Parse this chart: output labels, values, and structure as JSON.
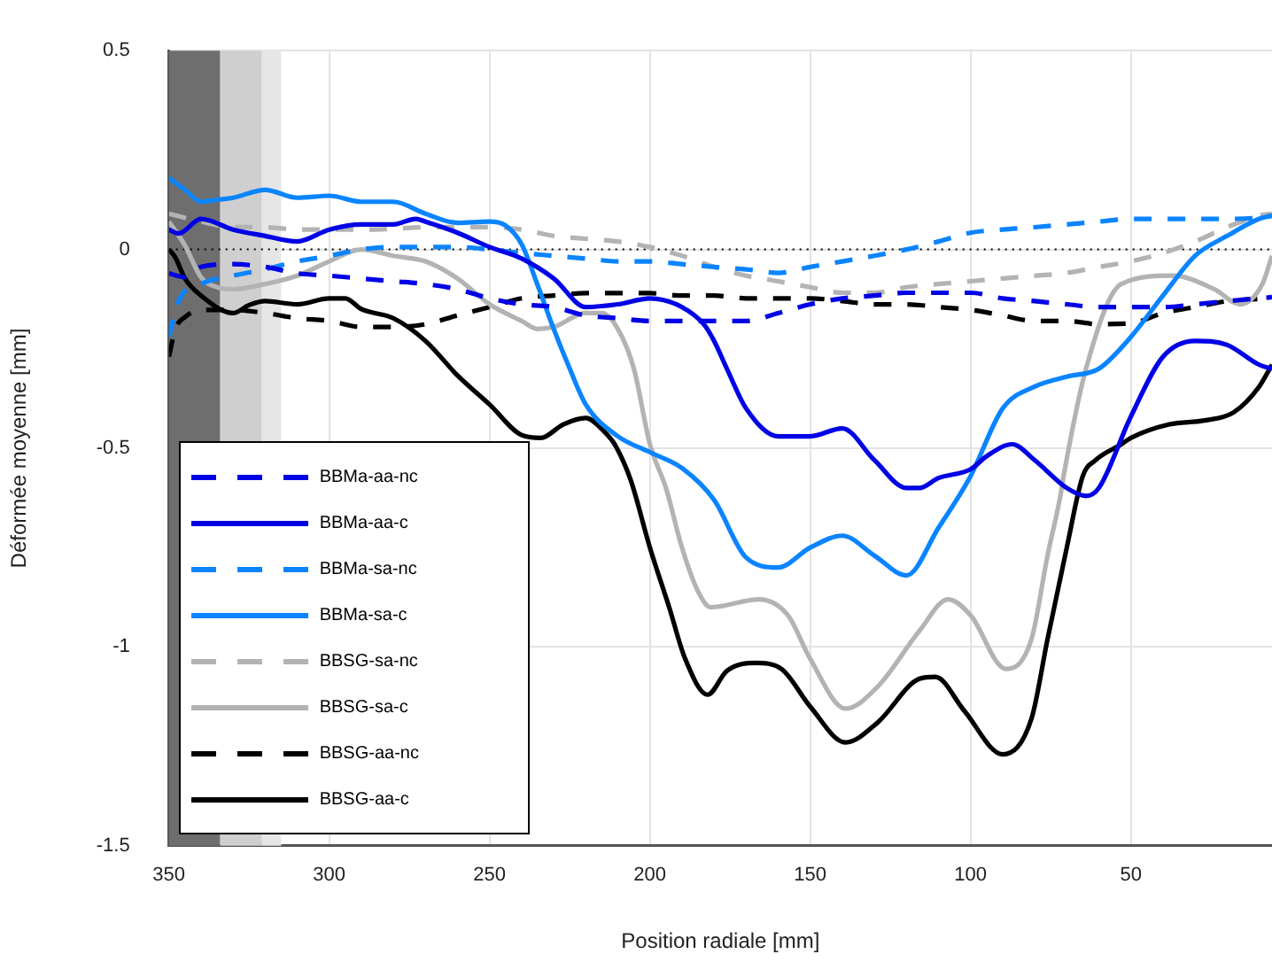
{
  "chart_data": {
    "type": "line",
    "xlabel": "Position radiale [mm]",
    "ylabel": "Déformée moyenne [mm]",
    "xlim": [
      350,
      6
    ],
    "xticks": [
      350,
      300,
      250,
      200,
      150,
      100,
      50
    ],
    "ylim": [
      -1.5,
      0.5
    ],
    "yticks": [
      0.5,
      0,
      -0.5,
      -1,
      -1.5
    ],
    "grid": true,
    "legend": "bottom left",
    "marker": "none",
    "ref_lines": [
      {
        "axis": "y",
        "value": 0,
        "color": "#000000",
        "line_style": "dotted"
      }
    ],
    "bands": [
      {
        "axis": "x",
        "from": 350,
        "to": 334,
        "color": "#6e6e6e"
      },
      {
        "axis": "x",
        "from": 334,
        "to": 321,
        "color": "#cfcfcf"
      },
      {
        "axis": "x",
        "from": 321,
        "to": 315,
        "color": "#e6e6e6"
      }
    ],
    "series": [
      {
        "name": "BBMa-aa-nc",
        "color": "#0000e6",
        "line_style": "dashed",
        "x": [
          350,
          345,
          340,
          330,
          320,
          310,
          300,
          290,
          280,
          270,
          260,
          250,
          240,
          230,
          220,
          210,
          200,
          190,
          180,
          170,
          160,
          150,
          140,
          130,
          120,
          110,
          100,
          90,
          80,
          70,
          60,
          50,
          40,
          30,
          20,
          10,
          6
        ],
        "values": [
          -0.06,
          -0.07,
          -0.044,
          -0.037,
          -0.044,
          -0.06,
          -0.066,
          -0.073,
          -0.08,
          -0.087,
          -0.1,
          -0.123,
          -0.138,
          -0.145,
          -0.166,
          -0.173,
          -0.18,
          -0.18,
          -0.18,
          -0.18,
          -0.16,
          -0.138,
          -0.123,
          -0.116,
          -0.109,
          -0.109,
          -0.109,
          -0.123,
          -0.13,
          -0.138,
          -0.145,
          -0.145,
          -0.145,
          -0.138,
          -0.13,
          -0.123,
          -0.12
        ]
      },
      {
        "name": "BBMa-aa-c",
        "color": "#0000e6",
        "line_style": "solid",
        "x": [
          350,
          347,
          340,
          330,
          320,
          310,
          300,
          290,
          280,
          273,
          270,
          260,
          250,
          240,
          230,
          220,
          210,
          200,
          190,
          183,
          180,
          176,
          170,
          160,
          150,
          140,
          130,
          120,
          116,
          110,
          100,
          95,
          87,
          80,
          70,
          64,
          60,
          50,
          40,
          30,
          20,
          10,
          6
        ],
        "values": [
          0.05,
          0.04,
          0.077,
          0.05,
          0.034,
          0.02,
          0.05,
          0.063,
          0.063,
          0.077,
          0.07,
          0.042,
          0.006,
          -0.023,
          -0.073,
          -0.145,
          -0.138,
          -0.123,
          -0.145,
          -0.19,
          -0.23,
          -0.3,
          -0.4,
          -0.47,
          -0.47,
          -0.45,
          -0.53,
          -0.6,
          -0.6,
          -0.575,
          -0.553,
          -0.52,
          -0.49,
          -0.53,
          -0.6,
          -0.62,
          -0.6,
          -0.42,
          -0.27,
          -0.23,
          -0.24,
          -0.29,
          -0.3
        ]
      },
      {
        "name": "BBMa-sa-nc",
        "color": "#0a84ff",
        "line_style": "dashed",
        "x": [
          350,
          347,
          340,
          330,
          320,
          310,
          300,
          290,
          280,
          270,
          260,
          250,
          240,
          230,
          220,
          210,
          200,
          190,
          180,
          170,
          160,
          150,
          140,
          130,
          120,
          110,
          100,
          90,
          80,
          70,
          60,
          50,
          40,
          30,
          20,
          10,
          6
        ],
        "values": [
          -0.22,
          -0.13,
          -0.087,
          -0.066,
          -0.05,
          -0.03,
          -0.016,
          0,
          0.006,
          0.006,
          0.006,
          0,
          -0.009,
          -0.016,
          -0.023,
          -0.03,
          -0.03,
          -0.037,
          -0.044,
          -0.05,
          -0.059,
          -0.044,
          -0.03,
          -0.016,
          0,
          0.02,
          0.042,
          0.05,
          0.056,
          0.063,
          0.07,
          0.077,
          0.077,
          0.077,
          0.077,
          0.08,
          0.085
        ]
      },
      {
        "name": "BBMa-sa-c",
        "color": "#0a84ff",
        "line_style": "solid",
        "x": [
          350,
          345,
          340,
          335,
          330,
          320,
          310,
          300,
          290,
          280,
          270,
          260,
          250,
          245,
          240,
          235,
          230,
          225,
          220,
          210,
          200,
          190,
          180,
          170,
          160,
          150,
          140,
          130,
          120,
          110,
          100,
          90,
          80,
          70,
          60,
          50,
          40,
          30,
          20,
          10,
          6
        ],
        "values": [
          0.18,
          0.15,
          0.12,
          0.125,
          0.13,
          0.15,
          0.13,
          0.135,
          0.12,
          0.12,
          0.09,
          0.067,
          0.07,
          0.06,
          0.013,
          -0.09,
          -0.2,
          -0.3,
          -0.39,
          -0.47,
          -0.51,
          -0.55,
          -0.63,
          -0.775,
          -0.8,
          -0.75,
          -0.72,
          -0.77,
          -0.82,
          -0.7,
          -0.57,
          -0.4,
          -0.345,
          -0.32,
          -0.3,
          -0.22,
          -0.116,
          -0.016,
          0.034,
          0.077,
          0.085
        ]
      },
      {
        "name": "BBSG-sa-nc",
        "color": "#b3b3b3",
        "line_style": "dashed",
        "x": [
          350,
          340,
          330,
          320,
          310,
          300,
          290,
          280,
          270,
          260,
          250,
          240,
          230,
          220,
          210,
          200,
          190,
          180,
          170,
          160,
          150,
          140,
          130,
          120,
          110,
          100,
          90,
          80,
          70,
          60,
          50,
          40,
          30,
          20,
          10,
          6
        ],
        "values": [
          0.09,
          0.07,
          0.056,
          0.056,
          0.05,
          0.05,
          0.05,
          0.052,
          0.056,
          0.056,
          0.056,
          0.05,
          0.034,
          0.027,
          0.02,
          0.006,
          -0.016,
          -0.044,
          -0.066,
          -0.08,
          -0.095,
          -0.109,
          -0.109,
          -0.095,
          -0.087,
          -0.08,
          -0.073,
          -0.066,
          -0.059,
          -0.044,
          -0.03,
          -0.009,
          0.02,
          0.056,
          0.085,
          0.09
        ]
      },
      {
        "name": "BBSG-sa-c",
        "color": "#b3b3b3",
        "line_style": "solid",
        "x": [
          350,
          345,
          340,
          335,
          330,
          320,
          310,
          300,
          290,
          280,
          270,
          260,
          250,
          240,
          235,
          230,
          220,
          215,
          210,
          205,
          200,
          195,
          190,
          185,
          181,
          166,
          157,
          150,
          139,
          129,
          116,
          107,
          100,
          89,
          81,
          76,
          72,
          71,
          64,
          53,
          37,
          24,
          16,
          9,
          6
        ],
        "values": [
          0.07,
          0.01,
          -0.07,
          -0.095,
          -0.1,
          -0.087,
          -0.066,
          -0.03,
          0,
          -0.016,
          -0.03,
          -0.073,
          -0.138,
          -0.18,
          -0.2,
          -0.195,
          -0.16,
          -0.16,
          -0.2,
          -0.3,
          -0.49,
          -0.6,
          -0.75,
          -0.86,
          -0.9,
          -0.88,
          -0.92,
          -1.03,
          -1.155,
          -1.1,
          -0.96,
          -0.88,
          -0.92,
          -1.055,
          -0.98,
          -0.77,
          -0.62,
          -0.57,
          -0.3,
          -0.087,
          -0.066,
          -0.1,
          -0.138,
          -0.087,
          -0.016
        ]
      },
      {
        "name": "BBSG-aa-nc",
        "color": "#000000",
        "line_style": "dashed",
        "x": [
          350,
          348,
          345,
          340,
          330,
          320,
          310,
          300,
          290,
          280,
          270,
          260,
          250,
          240,
          230,
          220,
          210,
          200,
          190,
          180,
          170,
          160,
          150,
          140,
          130,
          120,
          110,
          100,
          90,
          80,
          70,
          60,
          50,
          40,
          30,
          20,
          6
        ],
        "values": [
          -0.27,
          -0.2,
          -0.17,
          -0.152,
          -0.152,
          -0.16,
          -0.173,
          -0.18,
          -0.195,
          -0.195,
          -0.188,
          -0.166,
          -0.145,
          -0.123,
          -0.116,
          -0.11,
          -0.11,
          -0.11,
          -0.116,
          -0.116,
          -0.123,
          -0.123,
          -0.123,
          -0.13,
          -0.138,
          -0.138,
          -0.145,
          -0.152,
          -0.166,
          -0.18,
          -0.18,
          -0.188,
          -0.186,
          -0.16,
          -0.145,
          -0.13,
          -0.123
        ]
      },
      {
        "name": "BBSG-aa-c",
        "color": "#000000",
        "line_style": "solid",
        "x": [
          350,
          348,
          345,
          340,
          330,
          325,
          320,
          310,
          300,
          295,
          290,
          280,
          270,
          260,
          250,
          240,
          234,
          227,
          220,
          214,
          211,
          206,
          200,
          194,
          189,
          182,
          176,
          167,
          159,
          150,
          139,
          129,
          116,
          111,
          102,
          90,
          81,
          76,
          70,
          65,
          61,
          53,
          50,
          38,
          27,
          18,
          10,
          6
        ],
        "values": [
          0,
          -0.02,
          -0.073,
          -0.116,
          -0.16,
          -0.14,
          -0.13,
          -0.138,
          -0.123,
          -0.123,
          -0.15,
          -0.173,
          -0.23,
          -0.317,
          -0.39,
          -0.467,
          -0.474,
          -0.44,
          -0.424,
          -0.46,
          -0.49,
          -0.58,
          -0.75,
          -0.9,
          -1.03,
          -1.12,
          -1.06,
          -1.04,
          -1.055,
          -1.15,
          -1.24,
          -1.19,
          -1.08,
          -1.075,
          -1.16,
          -1.27,
          -1.18,
          -0.98,
          -0.75,
          -0.57,
          -0.53,
          -0.49,
          -0.474,
          -0.44,
          -0.43,
          -0.41,
          -0.345,
          -0.29
        ]
      }
    ]
  }
}
